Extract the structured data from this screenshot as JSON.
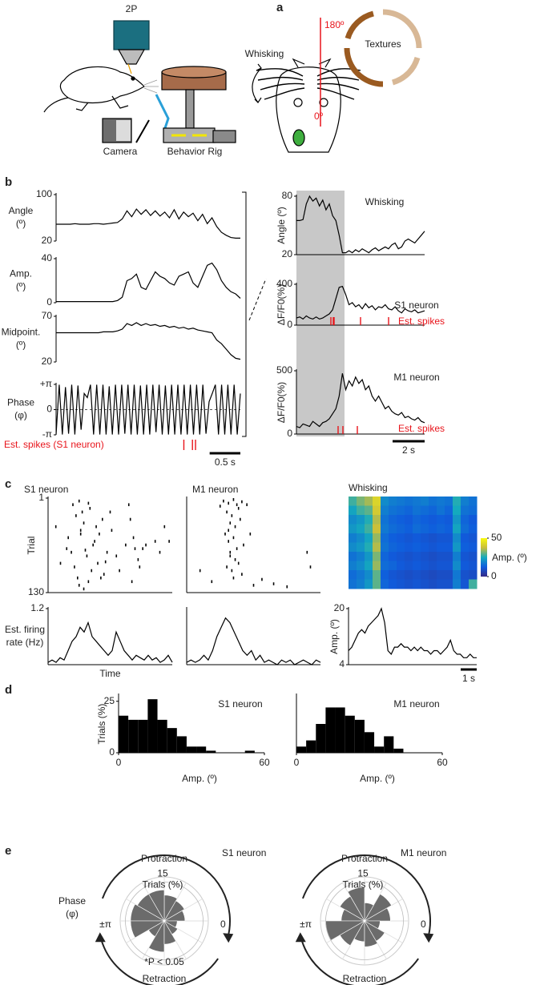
{
  "panel_labels": [
    "a",
    "b",
    "c",
    "d",
    "e"
  ],
  "illustration": {
    "objective": "2P",
    "camera": "Camera",
    "rig": "Behavior Rig",
    "whisking": "Whisking",
    "top": "180º",
    "bottom": "0º",
    "textures": "Textures"
  },
  "chart_data": [
    {
      "type": "line",
      "ylabel": [
        "Angle",
        "(º)"
      ],
      "ylim": [
        20,
        100
      ],
      "yticks": [
        20,
        100
      ],
      "xlim": [
        0,
        3
      ],
      "color": "#000000",
      "values": [
        49,
        49,
        49,
        49,
        50,
        49,
        49,
        49,
        50,
        50,
        49,
        50,
        51,
        52,
        58,
        72,
        62,
        75,
        66,
        74,
        64,
        72,
        63,
        70,
        60,
        74,
        58,
        70,
        62,
        68,
        55,
        66,
        50,
        60,
        45,
        35,
        30,
        26,
        25,
        25
      ]
    },
    {
      "type": "line",
      "ylabel": [
        "Amp.",
        "(º)"
      ],
      "ylim": [
        0,
        40
      ],
      "yticks": [
        0,
        40
      ],
      "xlim": [
        0,
        3
      ],
      "color": "#000000",
      "values": [
        1,
        1,
        1,
        1,
        1,
        1,
        1,
        1,
        1,
        1,
        1,
        1,
        1,
        2,
        5,
        20,
        22,
        26,
        14,
        12,
        20,
        28,
        24,
        22,
        18,
        16,
        24,
        26,
        28,
        18,
        14,
        24,
        34,
        36,
        30,
        20,
        14,
        10,
        8,
        4
      ]
    },
    {
      "type": "line",
      "ylabel": [
        "Midpoint.",
        "(º)"
      ],
      "ylim": [
        20,
        70
      ],
      "yticks": [
        20,
        70
      ],
      "xlim": [
        0,
        3
      ],
      "color": "#000000",
      "values": [
        52,
        52,
        52,
        52,
        52,
        52,
        52,
        52,
        52,
        52,
        53,
        53,
        53,
        54,
        56,
        62,
        60,
        63,
        60,
        62,
        60,
        61,
        59,
        60,
        58,
        59,
        57,
        58,
        56,
        57,
        55,
        54,
        53,
        52,
        44,
        40,
        34,
        28,
        24,
        23
      ]
    },
    {
      "type": "line",
      "ylabel": [
        "Phase",
        "(φ)"
      ],
      "ylim": [
        -3.1416,
        3.1416
      ],
      "yticks": [
        {
          "value": -3.1416,
          "label": "-π"
        },
        0,
        {
          "value": 3.1416,
          "label": "+π"
        }
      ],
      "xlim": [
        0,
        3
      ],
      "color": "#000000",
      "values": [
        -3.1,
        3.1,
        -3.1,
        2.8,
        -3.0,
        3.1,
        -3.1,
        3.0,
        -2.5,
        2.0,
        1.5,
        3.1,
        -3.1,
        3.1,
        -3.1,
        3.1,
        -3.1,
        2.9,
        -3.1,
        3.1,
        -3.1,
        3.1,
        -3.0,
        3.1,
        -3.1,
        3.1,
        -3.1,
        3.0,
        -3.1,
        3.1,
        -3.1,
        3.1,
        -2.8,
        3.1,
        -3.1,
        3.0,
        -3.1,
        3.1,
        -3.1,
        3.1,
        -3.1,
        3.1,
        -3.1,
        3.1,
        -3.1,
        3.1,
        -3.1,
        3.1,
        -3.0,
        1.0,
        2.0,
        3.1,
        -3.1,
        3.1,
        -3.1,
        3.1,
        -3.1,
        3.1,
        -3.1,
        2.0
      ],
      "spikes": {
        "name": "Est. spikes (S1 neuron)",
        "color": "#e8141b",
        "x": [
          2.08,
          2.22,
          2.27
        ]
      },
      "scalebar": {
        "value": 0.5,
        "label": "0.5 s"
      }
    },
    {
      "type": "line",
      "title": "Whisking",
      "ylabel": "Angle (º)",
      "ylim": [
        20,
        80
      ],
      "yticks": [
        20,
        80
      ],
      "xlim": [
        0,
        8
      ],
      "color": "#000000",
      "shade": [
        0,
        3
      ],
      "values": [
        55,
        55,
        56,
        72,
        80,
        75,
        78,
        70,
        76,
        66,
        72,
        60,
        55,
        40,
        22,
        22,
        24,
        22,
        25,
        23,
        26,
        24,
        22,
        25,
        27,
        24,
        26,
        28,
        26,
        30,
        32,
        26,
        28,
        34,
        36,
        34,
        32,
        36,
        40,
        44
      ]
    },
    {
      "type": "line",
      "title": "S1 neuron",
      "ylabel": "ΔF/F0(%)",
      "ylim": [
        0,
        400
      ],
      "yticks": [
        0,
        400
      ],
      "xlim": [
        0,
        8
      ],
      "color": "#000000",
      "shade": [
        0,
        3
      ],
      "values": [
        70,
        80,
        60,
        90,
        70,
        60,
        80,
        60,
        70,
        90,
        110,
        150,
        260,
        370,
        380,
        300,
        200,
        220,
        180,
        200,
        160,
        210,
        170,
        190,
        150,
        180,
        170,
        200,
        160,
        150,
        180,
        140,
        120,
        160,
        140,
        130,
        150,
        120,
        130,
        140
      ],
      "spikes": {
        "name": "Est. spikes",
        "color": "#e8141b",
        "x": [
          2.15,
          2.3,
          2.35,
          4.0,
          5.75
        ]
      }
    },
    {
      "type": "line",
      "title": "M1 neuron",
      "ylabel": "ΔF/F0(%)",
      "ylim": [
        0,
        500
      ],
      "yticks": [
        0,
        500
      ],
      "xlim": [
        0,
        8
      ],
      "color": "#000000",
      "shade": [
        0,
        3
      ],
      "values": [
        60,
        50,
        80,
        70,
        60,
        100,
        80,
        60,
        90,
        100,
        120,
        160,
        200,
        300,
        480,
        350,
        420,
        380,
        450,
        400,
        430,
        350,
        380,
        300,
        260,
        300,
        250,
        200,
        220,
        180,
        160,
        150,
        170,
        130,
        140,
        120,
        110,
        130,
        100,
        90
      ],
      "spikes": {
        "name": "Est. spikes",
        "color": "#e8141b",
        "x": [
          2.6,
          2.9,
          3.8
        ]
      },
      "scalebar": {
        "value": 2,
        "label": "2 s"
      }
    },
    {
      "type": "raster",
      "title": "S1 neuron",
      "ylabel": "Trial",
      "ylim": [
        130,
        1
      ],
      "yticks": [
        1,
        130
      ],
      "xlim": [
        0,
        8
      ],
      "x": [
        0.5,
        1.2,
        1.6,
        1.8,
        2.0,
        2.1,
        2.3,
        2.5,
        2.7,
        3.0,
        3.2,
        3.5,
        3.8,
        4.1,
        4.6,
        5.2,
        5.5,
        5.8,
        6.3,
        7.5,
        1.7,
        1.9,
        2.2,
        2.4,
        2.6,
        2.9,
        3.3,
        3.6,
        4.0,
        5.3,
        5.6,
        6.9,
        0.8,
        1.5,
        2.0,
        2.8,
        3.4,
        4.4,
        5.0,
        5.9,
        7.2,
        7.8,
        2.3,
        3.1,
        1.3,
        2.6,
        3.7,
        5.4,
        6.1,
        2.1
      ],
      "y": [
        40,
        70,
        10,
        25,
        5,
        50,
        35,
        80,
        15,
        60,
        90,
        30,
        75,
        45,
        100,
        10,
        55,
        85,
        65,
        40,
        95,
        110,
        20,
        72,
        115,
        65,
        50,
        105,
        20,
        30,
        70,
        60,
        90,
        75,
        120,
        100,
        110,
        80,
        65,
        95,
        75,
        60,
        125,
        40,
        55,
        8,
        88,
        115,
        70,
        45
      ]
    },
    {
      "type": "raster",
      "title": "M1 neuron",
      "ylim": [
        130,
        1
      ],
      "xlim": [
        0,
        8
      ],
      "x": [
        2.2,
        2.5,
        2.8,
        3.0,
        3.3,
        2.4,
        2.7,
        3.1,
        2.6,
        2.9,
        3.2,
        2.3,
        2.5,
        2.8,
        3.0,
        3.4,
        2.6,
        2.9,
        2.4,
        2.7,
        3.1,
        2.5,
        2.8,
        3.3,
        2.6,
        0.8,
        1.5,
        4.0,
        4.5,
        5.2,
        6.0,
        7.2,
        7.4,
        3.6,
        2.0,
        3.8
      ],
      "y": [
        5,
        8,
        3,
        10,
        6,
        20,
        25,
        15,
        35,
        40,
        30,
        50,
        60,
        55,
        70,
        65,
        80,
        85,
        95,
        100,
        90,
        45,
        110,
        105,
        75,
        100,
        115,
        120,
        112,
        118,
        122,
        75,
        95,
        10,
        12,
        50
      ]
    },
    {
      "type": "heatmap",
      "title": "Whisking",
      "values": [
        [
          28,
          32,
          35,
          42,
          20,
          18,
          17,
          16,
          17,
          18,
          16,
          17,
          16,
          26,
          18,
          16
        ],
        [
          24,
          28,
          30,
          40,
          18,
          16,
          15,
          14,
          16,
          15,
          14,
          16,
          14,
          25,
          16,
          15
        ],
        [
          20,
          22,
          26,
          36,
          16,
          14,
          13,
          12,
          14,
          13,
          12,
          13,
          12,
          22,
          14,
          12
        ],
        [
          22,
          24,
          28,
          38,
          17,
          15,
          14,
          13,
          15,
          14,
          13,
          14,
          13,
          24,
          15,
          13
        ],
        [
          18,
          20,
          24,
          34,
          15,
          13,
          12,
          11,
          12,
          11,
          10,
          11,
          11,
          20,
          12,
          11
        ],
        [
          20,
          22,
          26,
          36,
          16,
          14,
          13,
          12,
          13,
          12,
          11,
          12,
          12,
          22,
          13,
          12
        ],
        [
          16,
          18,
          22,
          32,
          14,
          12,
          11,
          10,
          11,
          10,
          9,
          10,
          10,
          18,
          11,
          10
        ],
        [
          18,
          20,
          24,
          34,
          15,
          14,
          12,
          11,
          12,
          11,
          10,
          11,
          11,
          20,
          12,
          11
        ],
        [
          15,
          17,
          20,
          30,
          13,
          11,
          10,
          9,
          10,
          9,
          8,
          9,
          9,
          17,
          10,
          9
        ],
        [
          16,
          18,
          22,
          30,
          14,
          12,
          11,
          10,
          11,
          10,
          9,
          10,
          10,
          18,
          11,
          28
        ]
      ],
      "colorbar": {
        "label": "Amp. (º)",
        "lim": [
          0,
          50
        ],
        "ticks": [
          0,
          50
        ]
      }
    },
    {
      "type": "line",
      "ylabel": [
        "Est. firing",
        "rate (Hz)"
      ],
      "xlabel": "Time",
      "ylim": [
        0,
        1.2
      ],
      "yticks": [
        1.2
      ],
      "xlim": [
        0,
        8
      ],
      "color": "#000000",
      "values": [
        0.05,
        0.1,
        0.05,
        0.15,
        0.1,
        0.3,
        0.5,
        0.6,
        0.8,
        0.7,
        0.9,
        0.6,
        0.5,
        0.4,
        0.3,
        0.2,
        0.3,
        0.7,
        0.5,
        0.3,
        0.2,
        0.1,
        0.2,
        0.15,
        0.1,
        0.2,
        0.1,
        0.15,
        0.05,
        0.1,
        0.2,
        0.05
      ]
    },
    {
      "type": "line",
      "ylim": [
        0,
        1.2
      ],
      "xlim": [
        0,
        8
      ],
      "color": "#000000",
      "values": [
        0.05,
        0.1,
        0.05,
        0.1,
        0.2,
        0.1,
        0.3,
        0.6,
        0.8,
        1.0,
        0.9,
        0.7,
        0.5,
        0.3,
        0.2,
        0.3,
        0.1,
        0.2,
        0.05,
        0.1,
        0.05,
        0.0,
        0.1,
        0.05,
        0.1,
        0.0,
        0.05,
        0.1,
        0.05,
        0.0,
        0.1,
        0.05
      ]
    },
    {
      "type": "line",
      "ylabel": "Amp. (º)",
      "ylim": [
        4,
        20
      ],
      "yticks": [
        4,
        20
      ],
      "xlim": [
        0,
        8
      ],
      "color": "#000000",
      "values": [
        8,
        9,
        11,
        13,
        14,
        13,
        15,
        16,
        17,
        18,
        20,
        16,
        8,
        7,
        9,
        9,
        10,
        9,
        9,
        8,
        9,
        8,
        9,
        8,
        8,
        7,
        8,
        8,
        7,
        8,
        9,
        11,
        8,
        7,
        7,
        6,
        6,
        7,
        6,
        6
      ],
      "scalebar": {
        "value": 1,
        "label": "1 s"
      }
    },
    {
      "type": "histogram",
      "title": "S1 neuron",
      "ylabel": "Trials (%)",
      "xlabel": "Amp. (º)",
      "color": "#000000",
      "bins": [
        0,
        4,
        8,
        12,
        16,
        20,
        24,
        28,
        32,
        36,
        40,
        44,
        48,
        52,
        56,
        60
      ],
      "counts": [
        18,
        16,
        16,
        26,
        16,
        12,
        8,
        3,
        3,
        1,
        0,
        0,
        0,
        1,
        0
      ],
      "xlim": [
        0,
        60
      ],
      "xticks": [
        0,
        60
      ],
      "ylim": [
        0,
        28
      ],
      "yticks": [
        0,
        25
      ]
    },
    {
      "type": "histogram",
      "title": "M1 neuron",
      "xlabel": "Amp. (º)",
      "color": "#000000",
      "bins": [
        0,
        4,
        8,
        12,
        16,
        20,
        24,
        28,
        32,
        36,
        40,
        44,
        48,
        52,
        56,
        60
      ],
      "counts": [
        3,
        6,
        14,
        22,
        22,
        18,
        16,
        10,
        3,
        8,
        2,
        0,
        0,
        0,
        0
      ],
      "xlim": [
        0,
        60
      ],
      "xticks": [
        0,
        60
      ],
      "ylim": [
        0,
        28
      ]
    },
    {
      "type": "polar",
      "title": "S1 neuron",
      "color": "#6b6b6b",
      "values": [
        8,
        9,
        10,
        12,
        12,
        13,
        13,
        7,
        12,
        9,
        6,
        5
      ],
      "rlim": [
        0,
        17
      ],
      "rticks": [
        15
      ],
      "rlabel": "Trials (%)",
      "top": "Protraction",
      "bottom": "Retraction",
      "left": "±π",
      "right": "0",
      "ylabel": [
        "Phase",
        "(φ)"
      ],
      "note": "*P < 0.05"
    },
    {
      "type": "polar",
      "title": "M1 neuron",
      "color": "#6b6b6b",
      "values": [
        10,
        12,
        7,
        13,
        11,
        9,
        15,
        11,
        8,
        10,
        9,
        6
      ],
      "rlim": [
        0,
        17
      ],
      "rticks": [
        15
      ],
      "rlabel": "Trials (%)",
      "top": "Protraction",
      "bottom": "Retraction",
      "left": "±π",
      "right": "0"
    }
  ]
}
